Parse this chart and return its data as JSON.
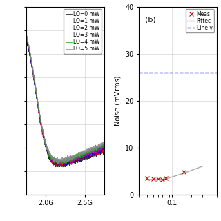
{
  "panel_a": {
    "xlabel": "",
    "xtick_labels": [
      "2.0G",
      "2.5G"
    ],
    "xtick_positions": [
      2000000000.0,
      2500000000.0
    ],
    "xlim": [
      1750000000.0,
      2750000000.0
    ],
    "ylim_bottom": -110,
    "ylim_top": -30,
    "grid": true,
    "lines": [
      {
        "label": "LO=0 mW",
        "color": "#000000"
      },
      {
        "label": "LO=1 mW",
        "color": "#ff0000"
      },
      {
        "label": "LO=2 mW",
        "color": "#0000cc"
      },
      {
        "label": "LO=3 mW",
        "color": "#cc00cc"
      },
      {
        "label": "LO=4 mW",
        "color": "#00aa00"
      },
      {
        "label": "LO=5 mW",
        "color": "#888888"
      }
    ]
  },
  "panel_b": {
    "label": "(b)",
    "ylabel": "Noise (mVrms)",
    "xlabel": "",
    "xtick_labels": [
      "0.1"
    ],
    "xtick_positions": [
      0.1
    ],
    "xlim": [
      0.03,
      0.5
    ],
    "ylim": [
      0,
      40
    ],
    "ytick_positions": [
      0,
      10,
      20,
      30,
      40
    ],
    "grid": true,
    "measured_x": [
      0.04,
      0.05,
      0.06,
      0.07,
      0.08,
      0.15
    ],
    "measured_y": [
      3.5,
      3.3,
      3.3,
      3.2,
      3.4,
      4.8
    ],
    "fitted_x": [
      0.04,
      0.05,
      0.06,
      0.07,
      0.08,
      0.15,
      0.3
    ],
    "fitted_y": [
      3.2,
      3.2,
      3.2,
      3.2,
      3.3,
      4.5,
      6.0
    ],
    "dashed_y": 26.0,
    "legend_entries": [
      {
        "label": "Meas",
        "color": "#cc0000",
        "marker": "x",
        "linestyle": "none"
      },
      {
        "label": "Fittec",
        "color": "#888888",
        "marker": "",
        "linestyle": "-"
      },
      {
        "label": "Line v",
        "color": "#0000cc",
        "marker": "",
        "linestyle": "--"
      }
    ]
  },
  "bg_color": "#ffffff",
  "font_size": 7
}
